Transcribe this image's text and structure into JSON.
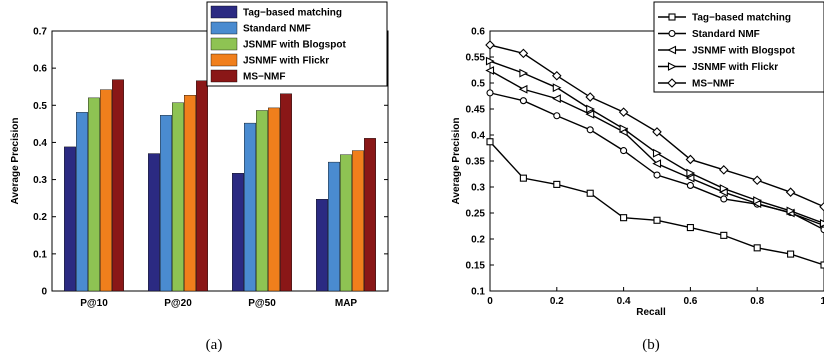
{
  "chart_data": [
    {
      "type": "bar",
      "caption": "(a)",
      "ylabel": "Average Precision",
      "xlabel": "",
      "ylim": [
        0,
        0.7
      ],
      "yticks": [
        "0",
        "0.1",
        "0.2",
        "0.3",
        "0.4",
        "0.5",
        "0.6",
        "0.7"
      ],
      "categories": [
        "P@10",
        "P@20",
        "P@50",
        "MAP"
      ],
      "legend_position": "top-right",
      "grid": false,
      "series": [
        {
          "name": "Tag−based matching",
          "color": "#2b2a82",
          "values": [
            0.388,
            0.37,
            0.317,
            0.247
          ]
        },
        {
          "name": "Standard NMF",
          "color": "#4a8bd0",
          "values": [
            0.481,
            0.473,
            0.452,
            0.347
          ]
        },
        {
          "name": "JSNMF with Blogspot",
          "color": "#8ec353",
          "values": [
            0.52,
            0.507,
            0.486,
            0.367
          ]
        },
        {
          "name": "JSNMF with Flickr",
          "color": "#f07f1c",
          "values": [
            0.542,
            0.527,
            0.493,
            0.378
          ]
        },
        {
          "name": "MS−NMF",
          "color": "#8a1717",
          "values": [
            0.569,
            0.566,
            0.531,
            0.411
          ]
        }
      ]
    },
    {
      "type": "line",
      "caption": "(b)",
      "xlabel": "Recall",
      "ylabel": "Average Precision",
      "xlim": [
        0,
        1
      ],
      "ylim": [
        0.1,
        0.6
      ],
      "xticks": [
        "0",
        "0.2",
        "0.4",
        "0.6",
        "0.8",
        "1"
      ],
      "yticks": [
        "0.1",
        "0.15",
        "0.2",
        "0.25",
        "0.3",
        "0.35",
        "0.4",
        "0.45",
        "0.5",
        "0.55",
        "0.6"
      ],
      "x": [
        0,
        0.1,
        0.2,
        0.3,
        0.4,
        0.5,
        0.6,
        0.7,
        0.8,
        0.9,
        1.0
      ],
      "legend_position": "top-right",
      "grid": false,
      "series": [
        {
          "name": "Tag−based matching",
          "marker": "square",
          "values": [
            0.387,
            0.317,
            0.305,
            0.288,
            0.241,
            0.236,
            0.222,
            0.207,
            0.183,
            0.171,
            0.15
          ]
        },
        {
          "name": "Standard NMF",
          "marker": "circle",
          "values": [
            0.481,
            0.466,
            0.437,
            0.41,
            0.37,
            0.323,
            0.303,
            0.277,
            0.267,
            0.251,
            0.218
          ]
        },
        {
          "name": "JSNMF with Blogspot",
          "marker": "triangle-left",
          "values": [
            0.524,
            0.488,
            0.47,
            0.44,
            0.406,
            0.345,
            0.317,
            0.29,
            0.268,
            0.25,
            0.226
          ]
        },
        {
          "name": "JSNMF with Flickr",
          "marker": "triangle-right",
          "values": [
            0.542,
            0.519,
            0.491,
            0.45,
            0.412,
            0.365,
            0.327,
            0.297,
            0.274,
            0.254,
            0.23
          ]
        },
        {
          "name": "MS−NMF",
          "marker": "diamond",
          "values": [
            0.573,
            0.557,
            0.514,
            0.473,
            0.444,
            0.406,
            0.353,
            0.333,
            0.313,
            0.29,
            0.262
          ]
        }
      ]
    }
  ]
}
